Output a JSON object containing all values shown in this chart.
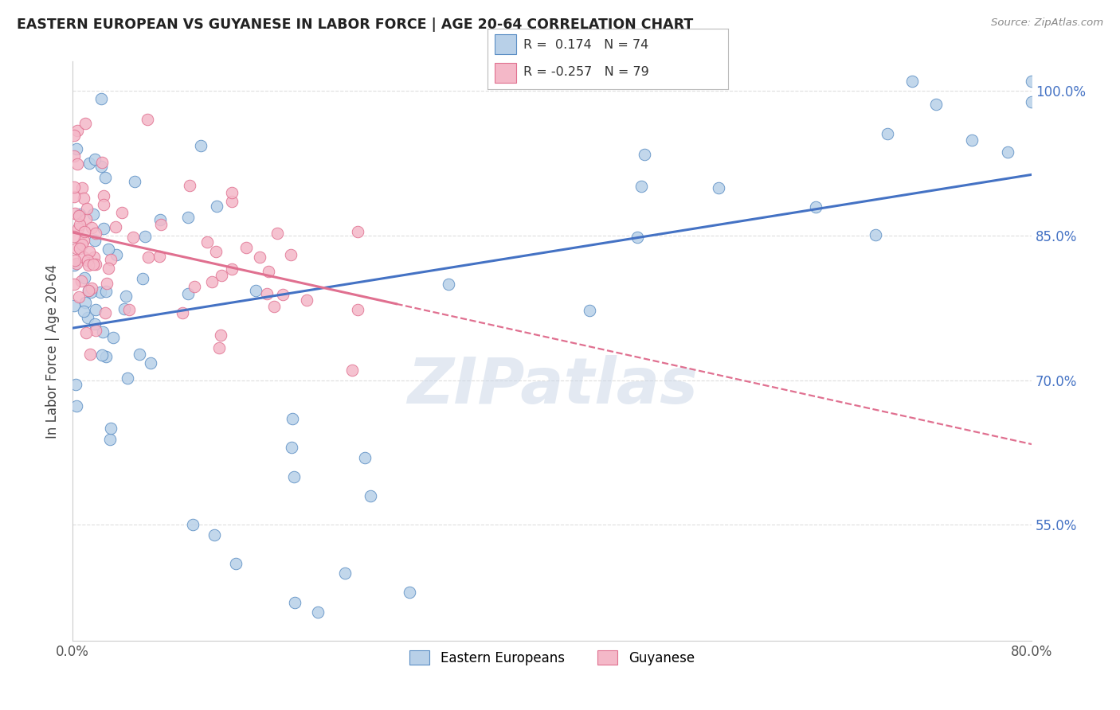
{
  "title": "EASTERN EUROPEAN VS GUYANESE IN LABOR FORCE | AGE 20-64 CORRELATION CHART",
  "source": "Source: ZipAtlas.com",
  "ylabel": "In Labor Force | Age 20-64",
  "xlim": [
    0.0,
    0.8
  ],
  "ylim": [
    0.43,
    1.03
  ],
  "legend_R1": "0.174",
  "legend_N1": "74",
  "legend_R2": "-0.257",
  "legend_N2": "79",
  "blue_fill": "#b8d0e8",
  "blue_edge": "#5b8ec4",
  "pink_fill": "#f4b8c8",
  "pink_edge": "#e07090",
  "blue_line_color": "#4472c4",
  "pink_line_color": "#e07090",
  "background_color": "#ffffff",
  "grid_color": "#dddddd",
  "watermark_color": "#ccd8e8",
  "legend_labels": [
    "Eastern Europeans",
    "Guyanese"
  ],
  "y_tick_positions": [
    0.55,
    0.7,
    0.85,
    1.0
  ],
  "y_tick_labels": [
    "55.0%",
    "70.0%",
    "85.0%",
    "100.0%"
  ],
  "x_tick_positions": [
    0.0,
    0.8
  ],
  "x_tick_labels": [
    "0.0%",
    "80.0%"
  ]
}
